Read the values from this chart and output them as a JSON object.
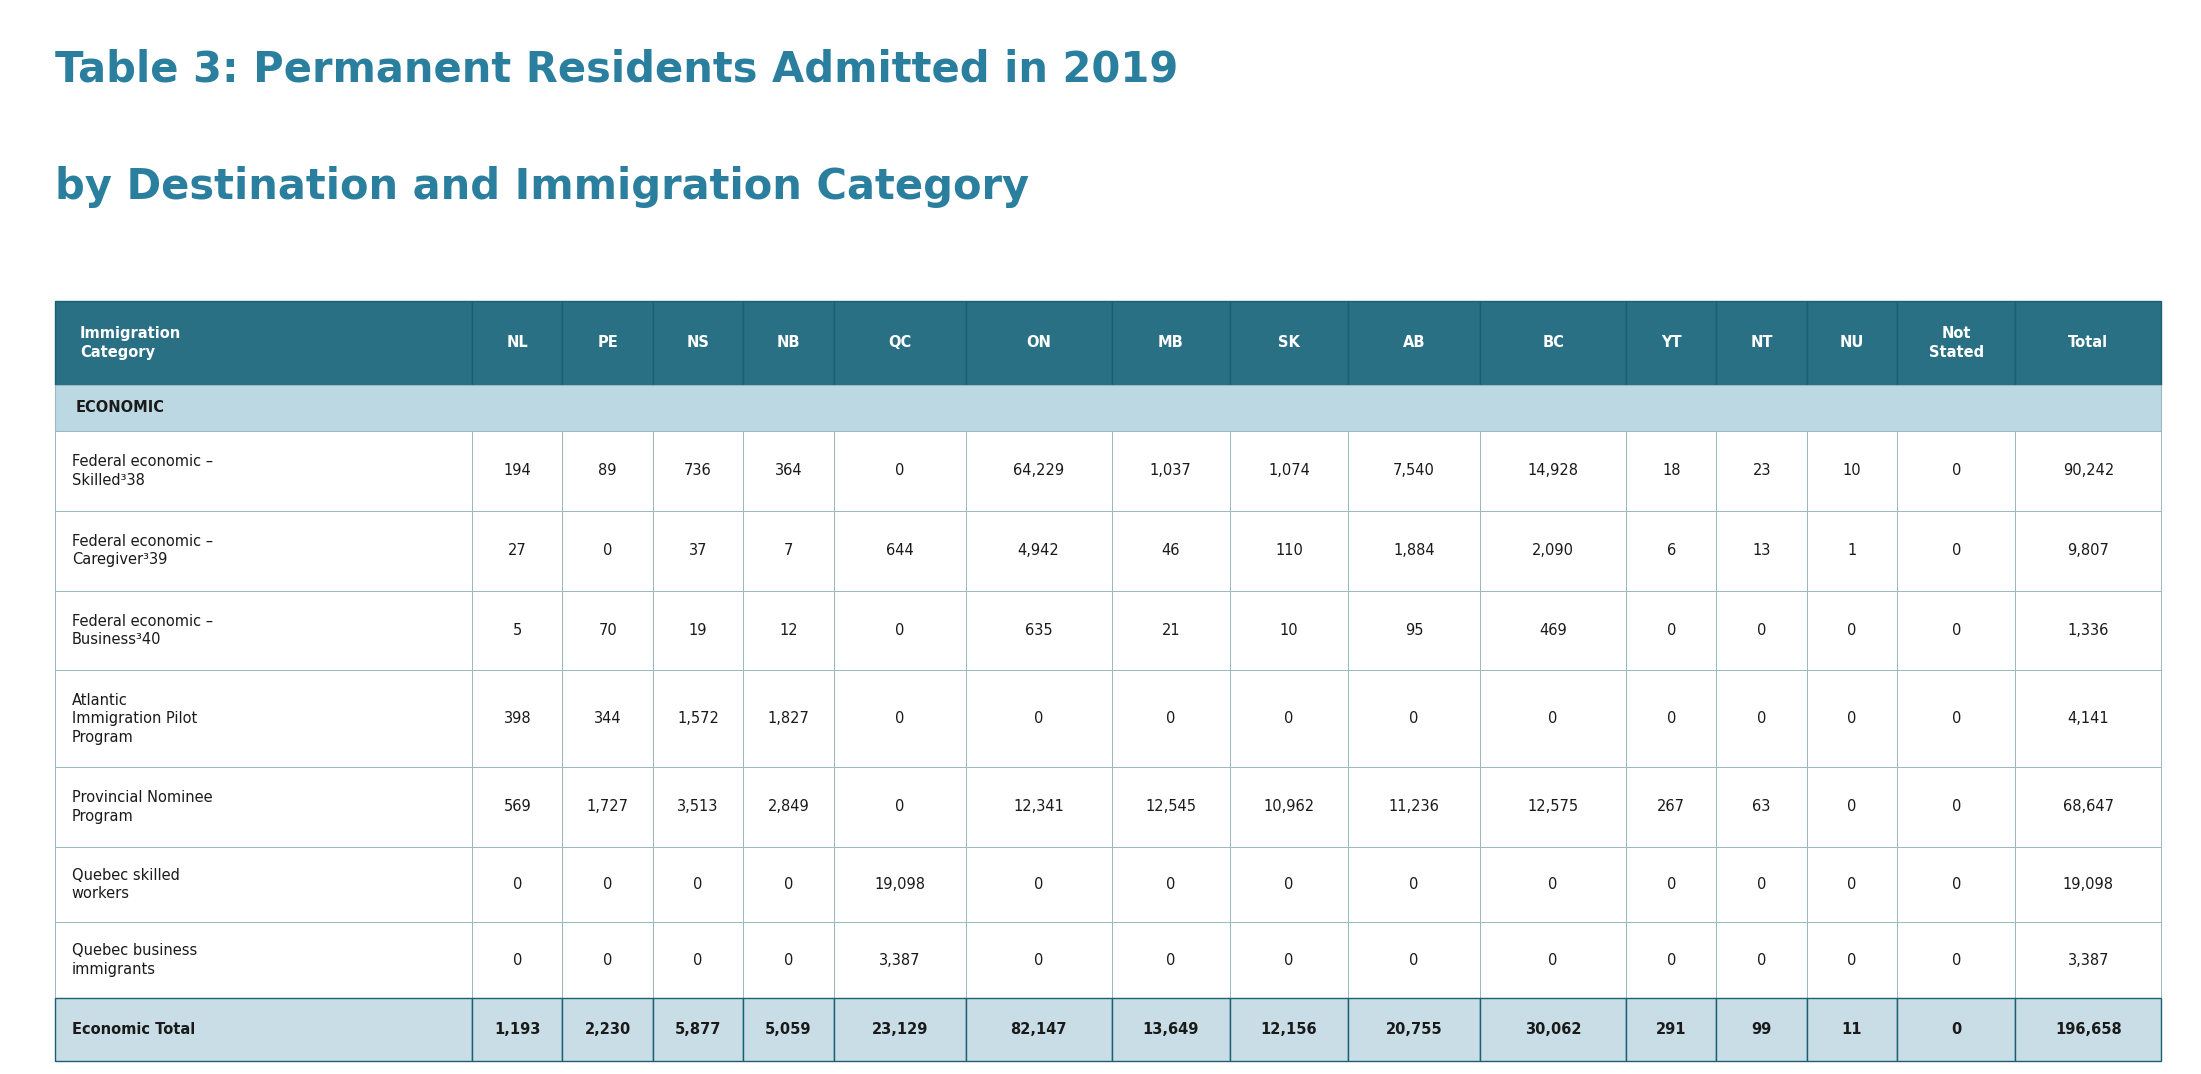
{
  "title_line1": "Table 3: Permanent Residents Admitted in 2019",
  "title_line2": "by Destination and Immigration Category",
  "title_color": "#2a7f9e",
  "header_bg_color": "#2a7085",
  "header_text_color": "#ffffff",
  "economic_section_bg": "#bcd9e3",
  "economic_section_text_color": "#1a1a1a",
  "total_row_bg": "#c8dde6",
  "total_row_text_color": "#1a1a1a",
  "odd_row_bg": "#ffffff",
  "even_row_bg": "#ffffff",
  "border_color": "#9ab8c2",
  "text_color_body": "#1a1a1a",
  "columns": [
    "Immigration\nCategory",
    "NL",
    "PE",
    "NS",
    "NB",
    "QC",
    "ON",
    "MB",
    "SK",
    "AB",
    "BC",
    "YT",
    "NT",
    "NU",
    "Not\nStated",
    "Total"
  ],
  "rows": [
    {
      "label": "Federal economic –\nSkilled³38",
      "values": [
        "194",
        "89",
        "736",
        "364",
        "0",
        "64,229",
        "1,037",
        "1,074",
        "7,540",
        "14,928",
        "18",
        "23",
        "10",
        "0",
        "90,242"
      ]
    },
    {
      "label": "Federal economic –\nCaregiver³39",
      "values": [
        "27",
        "0",
        "37",
        "7",
        "644",
        "4,942",
        "46",
        "110",
        "1,884",
        "2,090",
        "6",
        "13",
        "1",
        "0",
        "9,807"
      ]
    },
    {
      "label": "Federal economic –\nBusiness³40",
      "values": [
        "5",
        "70",
        "19",
        "12",
        "0",
        "635",
        "21",
        "10",
        "95",
        "469",
        "0",
        "0",
        "0",
        "0",
        "1,336"
      ]
    },
    {
      "label": "Atlantic\nImmigration Pilot\nProgram",
      "values": [
        "398",
        "344",
        "1,572",
        "1,827",
        "0",
        "0",
        "0",
        "0",
        "0",
        "0",
        "0",
        "0",
        "0",
        "0",
        "4,141"
      ]
    },
    {
      "label": "Provincial Nominee\nProgram",
      "values": [
        "569",
        "1,727",
        "3,513",
        "2,849",
        "0",
        "12,341",
        "12,545",
        "10,962",
        "11,236",
        "12,575",
        "267",
        "63",
        "0",
        "0",
        "68,647"
      ]
    },
    {
      "label": "Quebec skilled\nworkers",
      "values": [
        "0",
        "0",
        "0",
        "0",
        "19,098",
        "0",
        "0",
        "0",
        "0",
        "0",
        "0",
        "0",
        "0",
        "0",
        "19,098"
      ]
    },
    {
      "label": "Quebec business\nimmigrants",
      "values": [
        "0",
        "0",
        "0",
        "0",
        "3,387",
        "0",
        "0",
        "0",
        "0",
        "0",
        "0",
        "0",
        "0",
        "0",
        "3,387"
      ]
    }
  ],
  "total_row": {
    "label": "Economic Total",
    "values": [
      "1,193",
      "2,230",
      "5,877",
      "5,059",
      "23,129",
      "82,147",
      "13,649",
      "12,156",
      "20,755",
      "30,062",
      "291",
      "99",
      "11",
      "0",
      "196,658"
    ]
  },
  "col_widths_rel": [
    3.0,
    0.65,
    0.65,
    0.65,
    0.65,
    0.95,
    1.05,
    0.85,
    0.85,
    0.95,
    1.05,
    0.65,
    0.65,
    0.65,
    0.85,
    1.05
  ],
  "background_color": "#ffffff"
}
